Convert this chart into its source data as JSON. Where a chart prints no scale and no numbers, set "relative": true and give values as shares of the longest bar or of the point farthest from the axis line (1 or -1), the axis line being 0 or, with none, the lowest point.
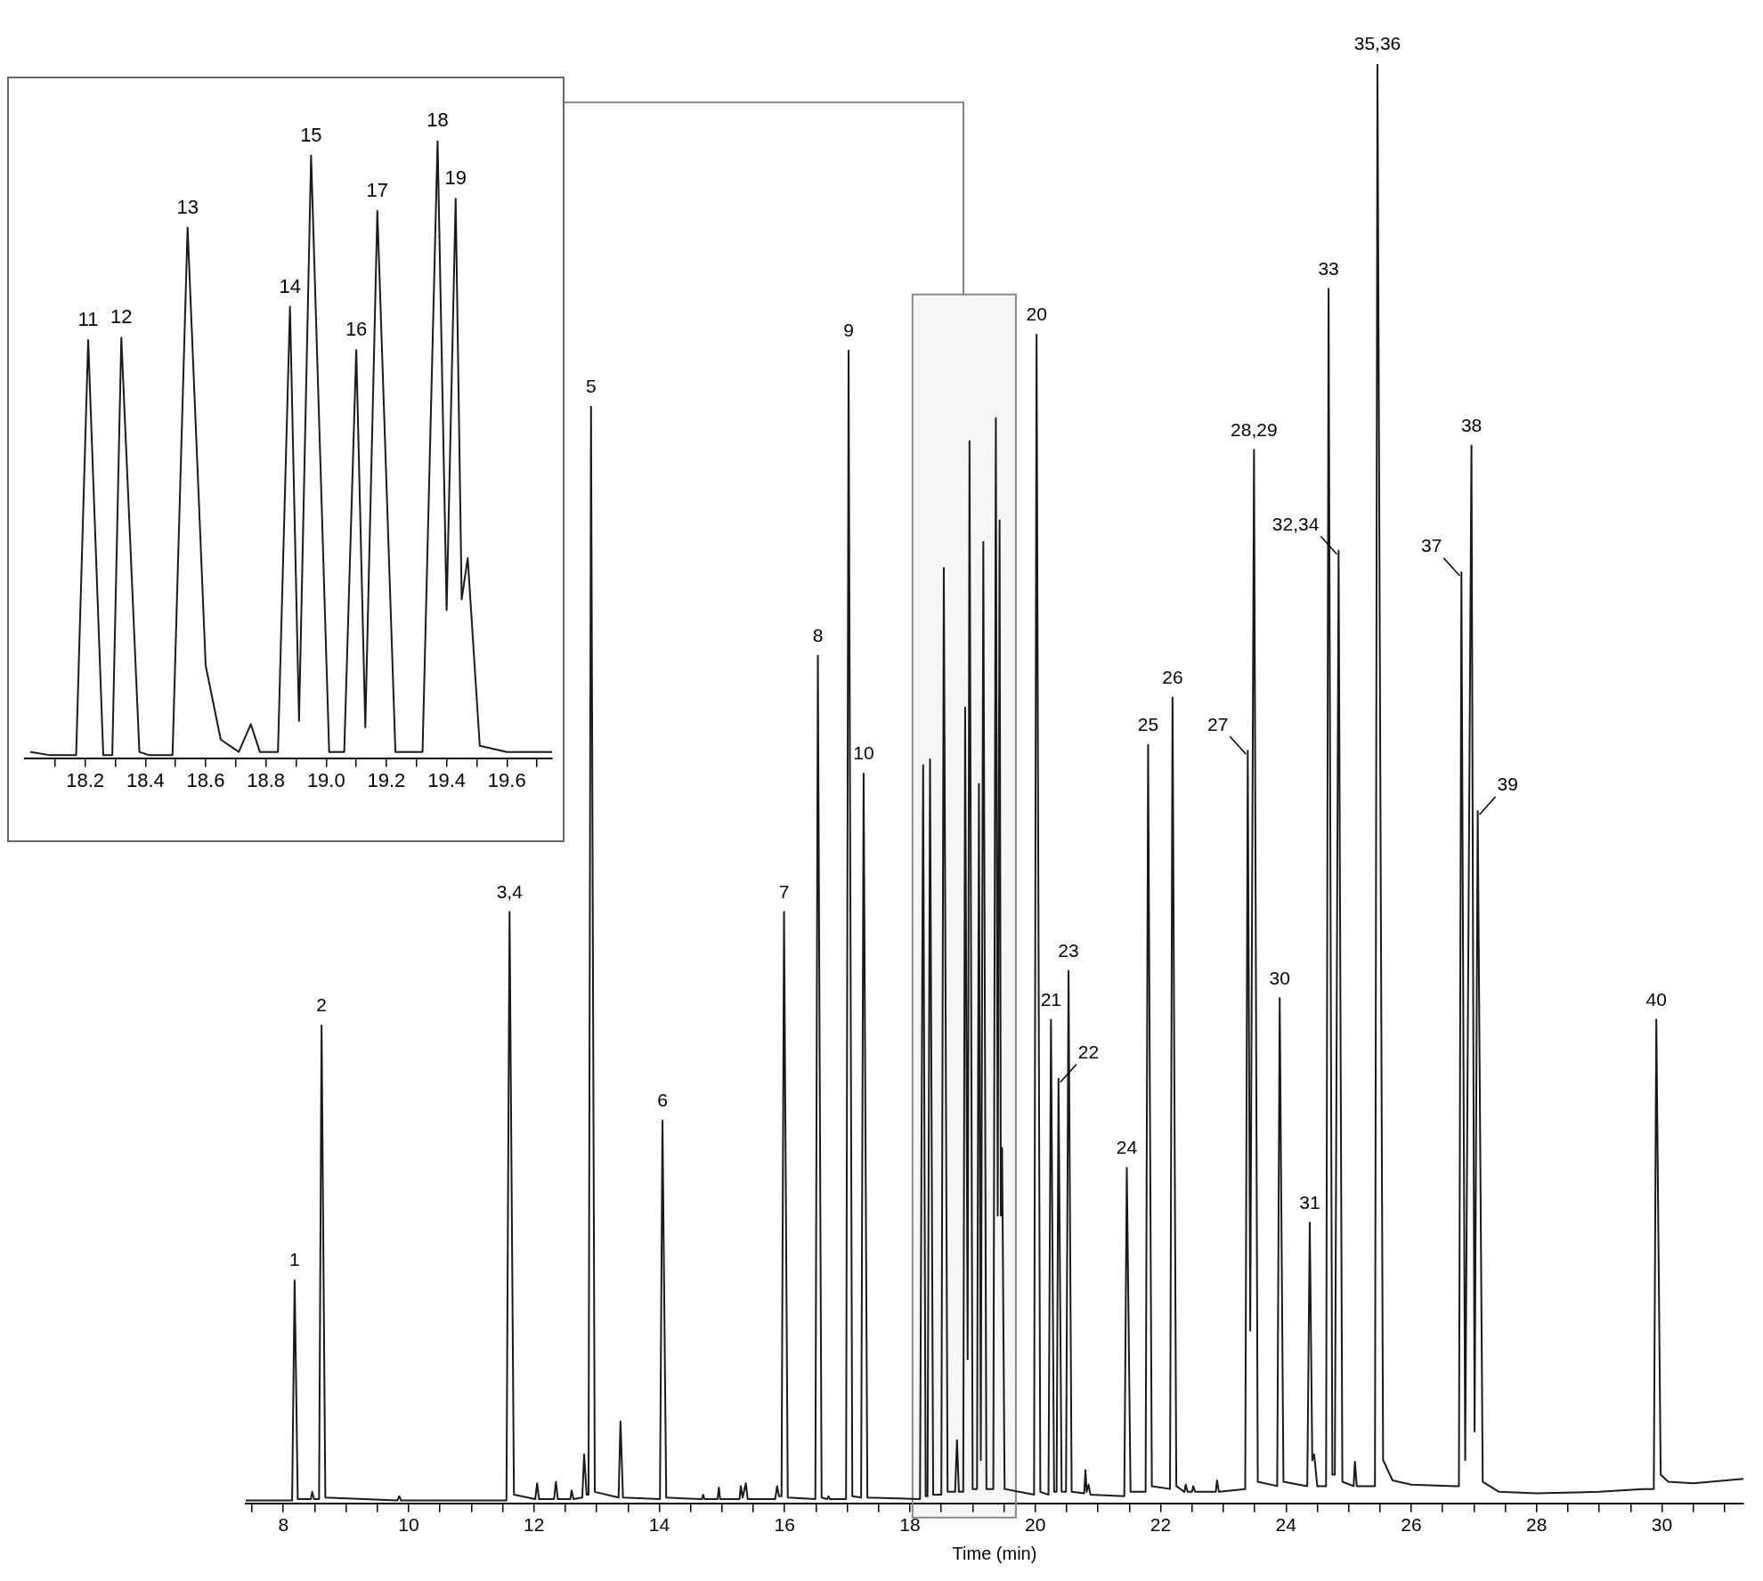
{
  "chart_data": [
    {
      "type": "line",
      "xlabel": "Time (min)",
      "relative": true,
      "grid": false,
      "legend": false,
      "marker": "none",
      "line_style": "solid",
      "xlim": [
        7.4,
        31.3
      ],
      "xticks": [
        {
          "value": 7.5,
          "label": null
        },
        8,
        {
          "value": 8.5,
          "label": null
        },
        {
          "value": 9,
          "label": null
        },
        {
          "value": 9.5,
          "label": null
        },
        10,
        {
          "value": 10.5,
          "label": null
        },
        {
          "value": 11,
          "label": null
        },
        {
          "value": 11.5,
          "label": null
        },
        12,
        {
          "value": 12.5,
          "label": null
        },
        {
          "value": 13,
          "label": null
        },
        {
          "value": 13.5,
          "label": null
        },
        14,
        {
          "value": 14.5,
          "label": null
        },
        {
          "value": 15,
          "label": null
        },
        {
          "value": 15.5,
          "label": null
        },
        16,
        {
          "value": 16.5,
          "label": null
        },
        {
          "value": 17,
          "label": null
        },
        {
          "value": 17.5,
          "label": null
        },
        18,
        {
          "value": 18.5,
          "label": null
        },
        {
          "value": 19,
          "label": null
        },
        {
          "value": 19.5,
          "label": null
        },
        20,
        {
          "value": 20.5,
          "label": null
        },
        {
          "value": 21,
          "label": null
        },
        {
          "value": 21.5,
          "label": null
        },
        22,
        {
          "value": 22.5,
          "label": null
        },
        {
          "value": 23,
          "label": null
        },
        {
          "value": 23.5,
          "label": null
        },
        24,
        {
          "value": 24.5,
          "label": null
        },
        {
          "value": 25,
          "label": null
        },
        {
          "value": 25.5,
          "label": null
        },
        26,
        {
          "value": 26.5,
          "label": null
        },
        {
          "value": 27,
          "label": null
        },
        {
          "value": 27.5,
          "label": null
        },
        28,
        {
          "value": 28.5,
          "label": null
        },
        {
          "value": 29,
          "label": null
        },
        {
          "value": 29.5,
          "label": null
        },
        30,
        {
          "value": 30.5,
          "label": null
        },
        {
          "value": 31,
          "label": null
        }
      ],
      "bands": [
        {
          "axis": "x",
          "from": 18.04,
          "to": 19.69,
          "color": "#888888"
        }
      ],
      "series": [
        {
          "color": "#1a1a1a",
          "x": [
            7.4,
            8.14,
            8.18,
            8.23,
            8.44,
            8.46,
            8.49,
            8.57,
            8.61,
            8.67,
            9.82,
            9.85,
            9.88,
            11.56,
            11.61,
            11.68,
            12.02,
            12.05,
            12.08,
            12.32,
            12.35,
            12.38,
            12.58,
            12.6,
            12.63,
            12.77,
            12.8,
            12.84,
            12.87,
            12.91,
            12.97,
            13.35,
            13.38,
            13.42,
            14.01,
            14.05,
            14.11,
            14.68,
            14.7,
            14.72,
            14.93,
            14.95,
            14.97,
            15.28,
            15.3,
            15.33,
            15.38,
            15.41,
            15.85,
            15.88,
            15.91,
            15.95,
            15.99,
            16.05,
            16.49,
            16.53,
            16.59,
            16.68,
            16.7,
            16.72,
            16.98,
            17.02,
            17.08,
            17.22,
            17.26,
            17.32,
            18.16,
            18.21,
            18.25,
            18.28,
            18.32,
            18.37,
            18.5,
            18.54,
            18.6,
            18.72,
            18.75,
            18.78,
            18.85,
            18.88,
            18.92,
            18.95,
            19.0,
            19.07,
            19.1,
            19.13,
            19.17,
            19.22,
            19.33,
            19.37,
            19.4,
            19.43,
            19.45,
            19.47,
            19.51,
            19.98,
            20.02,
            20.08,
            20.21,
            20.25,
            20.3,
            20.34,
            20.37,
            20.42,
            20.49,
            20.53,
            20.58,
            20.78,
            20.8,
            20.82,
            20.85,
            20.88,
            21.42,
            21.46,
            21.52,
            21.76,
            21.8,
            21.86,
            22.15,
            22.19,
            22.25,
            22.38,
            22.4,
            22.43,
            22.5,
            22.52,
            22.55,
            22.88,
            22.9,
            22.93,
            23.35,
            23.39,
            23.43,
            23.49,
            23.55,
            23.86,
            23.9,
            23.96,
            24.34,
            24.38,
            24.42,
            24.45,
            24.5,
            24.64,
            24.68,
            24.74,
            24.78,
            24.84,
            24.9,
            25.08,
            25.1,
            25.13,
            25.42,
            25.46,
            25.55,
            25.7,
            26.0,
            26.7,
            26.76,
            26.8,
            26.86,
            26.96,
            27.01,
            27.06,
            27.14,
            27.4,
            28.0,
            29.0,
            29.7,
            29.87,
            29.91,
            29.98,
            30.1,
            30.5,
            31.3
          ],
          "values": [
            0.002,
            0.002,
            0.155,
            0.003,
            0.003,
            0.008,
            0.003,
            0.003,
            0.332,
            0.004,
            0.002,
            0.005,
            0.002,
            0.002,
            0.411,
            0.006,
            0.003,
            0.014,
            0.003,
            0.003,
            0.015,
            0.003,
            0.003,
            0.009,
            0.003,
            0.004,
            0.034,
            0.006,
            0.006,
            0.762,
            0.008,
            0.004,
            0.057,
            0.004,
            0.003,
            0.266,
            0.004,
            0.003,
            0.006,
            0.003,
            0.003,
            0.011,
            0.003,
            0.003,
            0.012,
            0.004,
            0.014,
            0.003,
            0.003,
            0.012,
            0.005,
            0.005,
            0.411,
            0.004,
            0.003,
            0.589,
            0.004,
            0.003,
            0.005,
            0.003,
            0.003,
            0.801,
            0.005,
            0.004,
            0.507,
            0.004,
            0.003,
            0.513,
            0.005,
            0.005,
            0.517,
            0.006,
            0.006,
            0.65,
            0.008,
            0.008,
            0.044,
            0.008,
            0.008,
            0.553,
            0.1,
            0.738,
            0.01,
            0.01,
            0.5,
            0.03,
            0.668,
            0.01,
            0.01,
            0.754,
            0.2,
            0.683,
            0.2,
            0.247,
            0.01,
            0.006,
            0.812,
            0.008,
            0.006,
            0.336,
            0.008,
            0.008,
            0.295,
            0.008,
            0.008,
            0.37,
            0.008,
            0.007,
            0.023,
            0.008,
            0.013,
            0.006,
            0.005,
            0.233,
            0.008,
            0.008,
            0.527,
            0.012,
            0.01,
            0.56,
            0.012,
            0.008,
            0.013,
            0.008,
            0.008,
            0.012,
            0.008,
            0.008,
            0.016,
            0.008,
            0.01,
            0.523,
            0.12,
            0.732,
            0.015,
            0.012,
            0.351,
            0.015,
            0.012,
            0.195,
            0.03,
            0.034,
            0.012,
            0.012,
            0.844,
            0.02,
            0.02,
            0.662,
            0.015,
            0.012,
            0.029,
            0.012,
            0.012,
            1,
            0.03,
            0.016,
            0.013,
            0.012,
            0.012,
            0.647,
            0.03,
            0.735,
            0.05,
            0.481,
            0.015,
            0.008,
            0.007,
            0.008,
            0.01,
            0.01,
            0.336,
            0.02,
            0.015,
            0.014,
            0.017
          ]
        }
      ],
      "annotations": [
        {
          "text": "1",
          "x": 8.18,
          "y": 0.155
        },
        {
          "text": "2",
          "x": 8.61,
          "y": 0.332
        },
        {
          "text": "3,4",
          "x": 11.61,
          "y": 0.411
        },
        {
          "text": "5",
          "x": 12.91,
          "y": 0.762
        },
        {
          "text": "6",
          "x": 14.05,
          "y": 0.266
        },
        {
          "text": "7",
          "x": 15.99,
          "y": 0.411
        },
        {
          "text": "8",
          "x": 16.53,
          "y": 0.589
        },
        {
          "text": "9",
          "x": 17.02,
          "y": 0.801
        },
        {
          "text": "10",
          "x": 17.26,
          "y": 0.507
        },
        {
          "text": "20",
          "x": 20.02,
          "y": 0.812
        },
        {
          "text": "21",
          "x": 20.25,
          "y": 0.336
        },
        {
          "text": "22",
          "x": 20.37,
          "y": 0.295
        },
        {
          "text": "23",
          "x": 20.53,
          "y": 0.37
        },
        {
          "text": "24",
          "x": 21.46,
          "y": 0.233
        },
        {
          "text": "25",
          "x": 21.8,
          "y": 0.527
        },
        {
          "text": "26",
          "x": 22.19,
          "y": 0.56
        },
        {
          "text": "27",
          "x": 23.39,
          "y": 0.523
        },
        {
          "text": "28,29",
          "x": 23.49,
          "y": 0.732
        },
        {
          "text": "30",
          "x": 23.9,
          "y": 0.351
        },
        {
          "text": "31",
          "x": 24.38,
          "y": 0.195
        },
        {
          "text": "33",
          "x": 24.68,
          "y": 0.844
        },
        {
          "text": "32,34",
          "x": 24.84,
          "y": 0.662
        },
        {
          "text": "35,36",
          "x": 25.46,
          "y": 1
        },
        {
          "text": "37",
          "x": 26.8,
          "y": 0.647
        },
        {
          "text": "38",
          "x": 26.96,
          "y": 0.735
        },
        {
          "text": "39",
          "x": 27.06,
          "y": 0.481
        },
        {
          "text": "40",
          "x": 29.91,
          "y": 0.336
        }
      ]
    },
    {
      "type": "line",
      "relative": true,
      "grid": false,
      "legend": false,
      "marker": "none",
      "line_style": "solid",
      "xlim": [
        18.0,
        19.75
      ],
      "xticks": [
        {
          "value": 18.1,
          "label": null
        },
        18.2,
        {
          "value": 18.3,
          "label": null
        },
        18.4,
        {
          "value": 18.5,
          "label": null
        },
        18.6,
        {
          "value": 18.7,
          "label": null
        },
        18.8,
        {
          "value": 18.9,
          "label": null
        },
        {
          "value": 19,
          "label": "19.0"
        },
        {
          "value": 19.1,
          "label": null
        },
        19.2,
        {
          "value": 19.3,
          "label": null
        },
        19.4,
        {
          "value": 19.5,
          "label": null
        },
        19.6,
        {
          "value": 19.7,
          "label": null
        }
      ],
      "series": [
        {
          "color": "#1a1a1a",
          "x": [
            18.02,
            18.08,
            18.17,
            18.21,
            18.26,
            18.29,
            18.32,
            18.38,
            18.41,
            18.49,
            18.54,
            18.6,
            18.65,
            18.71,
            18.75,
            18.78,
            18.84,
            18.88,
            18.91,
            18.95,
            19.01,
            19.06,
            19.1,
            19.13,
            19.17,
            19.23,
            19.32,
            19.37,
            19.4,
            19.43,
            19.45,
            19.47,
            19.51,
            19.6,
            19.75
          ],
          "values": [
            0.01,
            0.005,
            0.005,
            0.677,
            0.005,
            0.005,
            0.681,
            0.01,
            0.005,
            0.005,
            0.859,
            0.15,
            0.03,
            0.01,
            0.055,
            0.01,
            0.01,
            0.731,
            0.06,
            0.976,
            0.01,
            0.01,
            0.661,
            0.05,
            0.886,
            0.01,
            0.01,
            1,
            0.24,
            0.906,
            0.257,
            0.324,
            0.02,
            0.01,
            0.01
          ]
        }
      ],
      "annotations": [
        {
          "text": "11",
          "x": 18.21,
          "y": 0.677
        },
        {
          "text": "12",
          "x": 18.32,
          "y": 0.681
        },
        {
          "text": "13",
          "x": 18.54,
          "y": 0.859
        },
        {
          "text": "14",
          "x": 18.88,
          "y": 0.731
        },
        {
          "text": "15",
          "x": 18.95,
          "y": 0.976
        },
        {
          "text": "16",
          "x": 19.1,
          "y": 0.661
        },
        {
          "text": "17",
          "x": 19.17,
          "y": 0.886
        },
        {
          "text": "18",
          "x": 19.37,
          "y": 1
        },
        {
          "text": "19",
          "x": 19.43,
          "y": 0.906
        }
      ]
    }
  ]
}
